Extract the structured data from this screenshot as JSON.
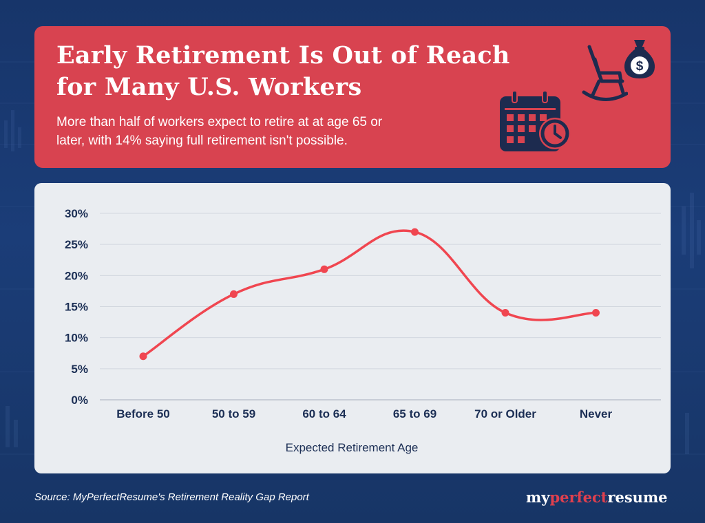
{
  "header": {
    "title_line1": "Early Retirement Is Out of Reach",
    "title_line2": "for Many U.S. Workers",
    "subtitle_line1": "More than half of workers expect to retire at at age 65 or",
    "subtitle_line2": "later, with 14% saying full retirement isn't possible.",
    "icons": [
      "rocking-chair-icon",
      "money-bag-icon",
      "calendar-clock-icon"
    ],
    "money_symbol": "$"
  },
  "chart_data": {
    "type": "line",
    "categories": [
      "Before 50",
      "50 to 59",
      "60 to 64",
      "65 to 69",
      "70 or Older",
      "Never"
    ],
    "values": [
      7,
      17,
      21,
      27,
      14,
      14
    ],
    "xlabel": "Expected Retirement Age",
    "ylabel": "",
    "ylim": [
      0,
      30
    ],
    "yticks": [
      0,
      5,
      10,
      15,
      20,
      25,
      30
    ],
    "ytick_labels": [
      "0%",
      "5%",
      "10%",
      "15%",
      "20%",
      "25%",
      "30%"
    ],
    "grid": true,
    "smooth": true,
    "line_color": "#f04650"
  },
  "footer": {
    "source": "Source: MyPerfectResume's Retirement Reality Gap Report",
    "brand_prefix": "my",
    "brand_accent": "perfect",
    "brand_suffix": "resume"
  },
  "colors": {
    "background": "#1b3d78",
    "header_card": "#d84350",
    "chart_card": "#eaedf1",
    "navy_text": "#1c2f55",
    "accent_red": "#f04650"
  }
}
